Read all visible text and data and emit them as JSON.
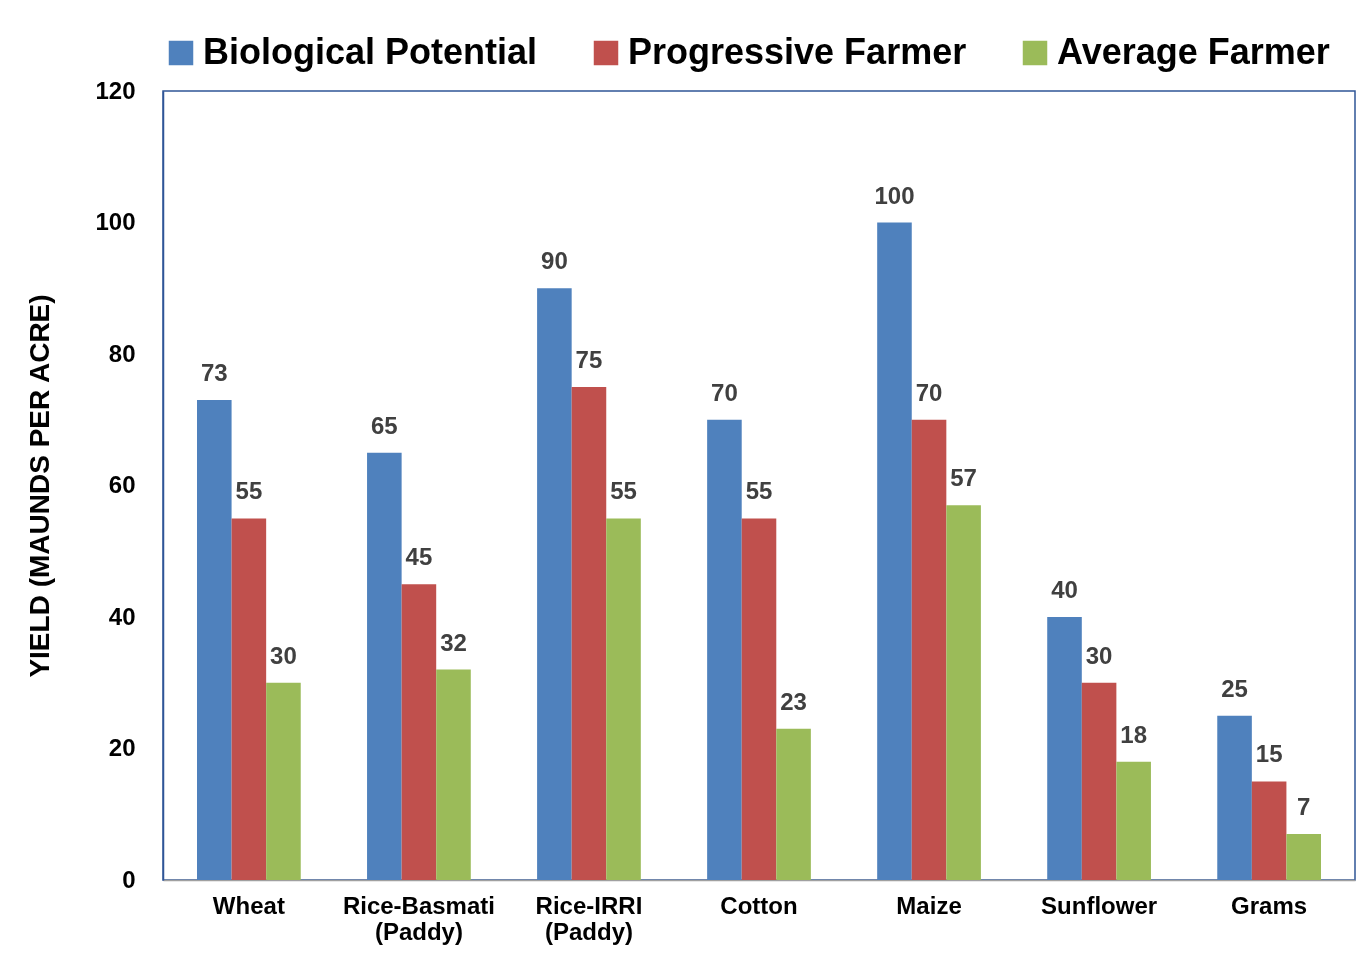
{
  "chart_data": {
    "type": "bar",
    "ylabel": "YIELD (MAUNDS PER ACRE)",
    "categories": [
      "Wheat",
      "Rice-Basmati (Paddy)",
      "Rice-IRRI (Paddy)",
      "Cotton",
      "Maize",
      "Sunflower",
      "Grams"
    ],
    "series": [
      {
        "name": "Biological Potential",
        "color": "#4f81bd",
        "values": [
          73,
          65,
          90,
          70,
          100,
          40,
          25
        ]
      },
      {
        "name": "Progressive Farmer",
        "color": "#c0504d",
        "values": [
          55,
          45,
          75,
          55,
          70,
          30,
          15
        ]
      },
      {
        "name": "Average Farmer",
        "color": "#9bbb59",
        "values": [
          30,
          32,
          55,
          23,
          57,
          18,
          7
        ]
      }
    ],
    "ylim": [
      0,
      120
    ],
    "yticks": [
      0,
      20,
      40,
      60,
      80,
      100,
      120
    ],
    "grid": false,
    "legend": "top",
    "data_labels": true
  }
}
